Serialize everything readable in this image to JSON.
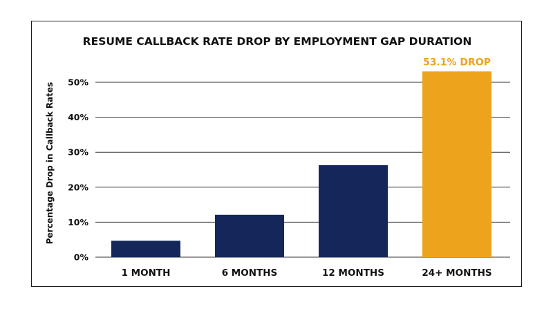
{
  "chart_data": {
    "type": "bar",
    "title": "RESUME CALLBACK RATE DROP BY EMPLOYMENT GAP DURATION",
    "ylabel": "Percentage Drop in Callback Rates",
    "xlabel": "",
    "categories": [
      "1 MONTH",
      "6 MONTHS",
      "12 MONTHS",
      "24+ MONTHS"
    ],
    "values": [
      4.7,
      12.1,
      26.3,
      53.1
    ],
    "ylim": [
      0,
      55
    ],
    "yticks": [
      0,
      10,
      20,
      30,
      40,
      50
    ],
    "ytick_labels": [
      "0%",
      "10%",
      "20%",
      "30%",
      "40%",
      "50%"
    ],
    "grid": true,
    "colors": {
      "default_bar": "#15275a",
      "highlight_bar": "#eea31c"
    },
    "highlight_index": 3,
    "annotation": {
      "text": "53.1% DROP",
      "category_index": 3,
      "color": "#eea31c"
    }
  }
}
